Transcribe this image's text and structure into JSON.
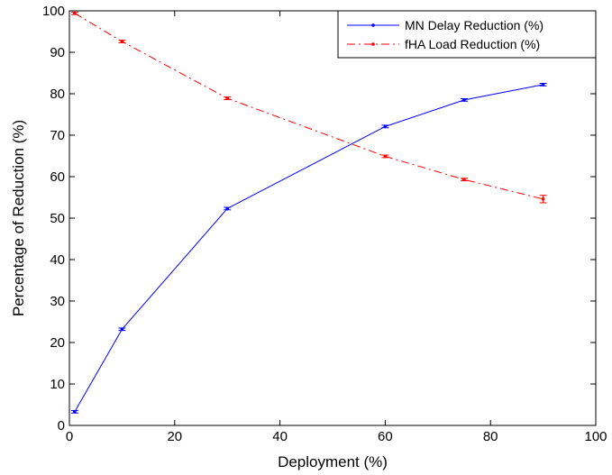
{
  "chart_data": {
    "type": "line",
    "title": "",
    "xlabel": "Deployment (%)",
    "ylabel": "Percentage of Reduction (%)",
    "xlim": [
      0,
      100
    ],
    "ylim": [
      0,
      100
    ],
    "xticks": [
      0,
      20,
      40,
      60,
      80,
      100
    ],
    "yticks": [
      0,
      10,
      20,
      30,
      40,
      50,
      60,
      70,
      80,
      90,
      100
    ],
    "grid": false,
    "legend_position": "top-right",
    "series": [
      {
        "name": "MN Delay Reduction (%)",
        "color": "#0000ff",
        "line_style": "solid",
        "marker": "dot",
        "error_bars": true,
        "x": [
          1,
          10,
          30,
          60,
          75,
          90
        ],
        "y": [
          3.3,
          23.2,
          52.3,
          72.1,
          78.5,
          82.2
        ],
        "err": [
          0.3,
          0.3,
          0.3,
          0.3,
          0.3,
          0.3
        ]
      },
      {
        "name": "fHA Load Reduction (%)",
        "color": "#ff0000",
        "line_style": "dash-dot",
        "marker": "dot",
        "error_bars": true,
        "x": [
          1,
          10,
          30,
          60,
          75,
          90
        ],
        "y": [
          99.4,
          92.6,
          78.9,
          64.9,
          59.3,
          54.6
        ],
        "err": [
          0.3,
          0.3,
          0.3,
          0.3,
          0.3,
          0.9
        ]
      }
    ]
  }
}
